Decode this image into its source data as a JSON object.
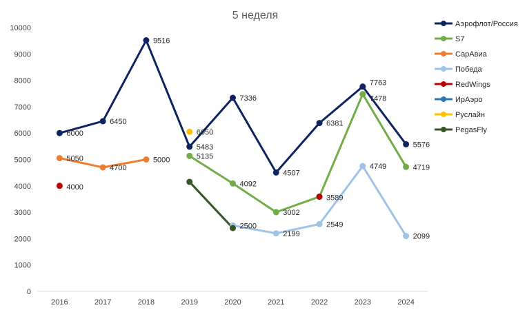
{
  "chart_data": {
    "type": "line",
    "title": "5 неделя",
    "xlabel": "",
    "ylabel": "",
    "categories": [
      "2016",
      "2017",
      "2018",
      "2019",
      "2020",
      "2021",
      "2022",
      "2023",
      "2024"
    ],
    "ylim": [
      0,
      10000
    ],
    "yticks": [
      0,
      1000,
      2000,
      3000,
      4000,
      5000,
      6000,
      7000,
      8000,
      9000,
      10000
    ],
    "grid": false,
    "legend_position": "right",
    "series": [
      {
        "name": "Аэрофлот/Россия",
        "color": "#0d2461",
        "values": [
          6000,
          6450,
          9516,
          5483,
          7336,
          4507,
          6381,
          7763,
          5576
        ]
      },
      {
        "name": "S7",
        "color": "#70ad47",
        "values": [
          null,
          null,
          null,
          5135,
          4092,
          3002,
          3589,
          7478,
          4719
        ]
      },
      {
        "name": "СарАвиа",
        "color": "#ed7d31",
        "values": [
          5050,
          4700,
          5000,
          null,
          null,
          null,
          null,
          null,
          null
        ]
      },
      {
        "name": "Победа",
        "color": "#9dc3e6",
        "values": [
          null,
          null,
          null,
          null,
          2500,
          2199,
          2549,
          4749,
          2099
        ]
      },
      {
        "name": "RedWings",
        "color": "#c00000",
        "values": [
          4000,
          null,
          null,
          null,
          null,
          null,
          3589,
          null,
          null
        ]
      },
      {
        "name": "ИрАэро",
        "color": "#2e75b6",
        "values": [
          null,
          null,
          null,
          null,
          null,
          null,
          null,
          null,
          null
        ]
      },
      {
        "name": "Руслайн",
        "color": "#ffc000",
        "values": [
          null,
          null,
          null,
          6050,
          null,
          null,
          null,
          null,
          null
        ]
      },
      {
        "name": "PegasFly",
        "color": "#375623",
        "values": [
          null,
          null,
          null,
          4150,
          2400,
          null,
          null,
          null,
          null
        ]
      }
    ],
    "data_labels": [
      {
        "series": 0,
        "index": 0,
        "text": "6000"
      },
      {
        "series": 0,
        "index": 1,
        "text": "6450"
      },
      {
        "series": 0,
        "index": 2,
        "text": "9516"
      },
      {
        "series": 0,
        "index": 3,
        "text": "5483"
      },
      {
        "series": 0,
        "index": 4,
        "text": "7336"
      },
      {
        "series": 0,
        "index": 5,
        "text": "4507"
      },
      {
        "series": 0,
        "index": 6,
        "text": "6381"
      },
      {
        "series": 0,
        "index": 7,
        "text": "7763"
      },
      {
        "series": 0,
        "index": 8,
        "text": "5576"
      },
      {
        "series": 1,
        "index": 3,
        "text": "5135"
      },
      {
        "series": 1,
        "index": 4,
        "text": "4092"
      },
      {
        "series": 1,
        "index": 5,
        "text": "3002"
      },
      {
        "series": 1,
        "index": 6,
        "text": "3589"
      },
      {
        "series": 1,
        "index": 7,
        "text": "7478"
      },
      {
        "series": 1,
        "index": 8,
        "text": "4719"
      },
      {
        "series": 2,
        "index": 0,
        "text": "5050"
      },
      {
        "series": 2,
        "index": 1,
        "text": "4700"
      },
      {
        "series": 2,
        "index": 2,
        "text": "5000"
      },
      {
        "series": 3,
        "index": 4,
        "text": "2500"
      },
      {
        "series": 3,
        "index": 5,
        "text": "2199"
      },
      {
        "series": 3,
        "index": 6,
        "text": "2549"
      },
      {
        "series": 3,
        "index": 7,
        "text": "4749"
      },
      {
        "series": 3,
        "index": 8,
        "text": "2099"
      },
      {
        "series": 4,
        "index": 0,
        "text": "4000"
      },
      {
        "series": 6,
        "index": 3,
        "text": "6050"
      }
    ]
  }
}
